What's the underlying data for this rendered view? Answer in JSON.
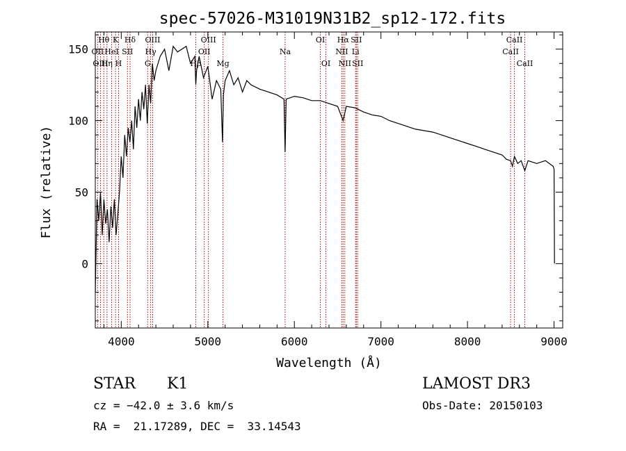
{
  "chart_data": {
    "type": "line",
    "title": "spec-57026-M31019N31B2_sp12-172.fits",
    "xlabel": "Wavelength (Å)",
    "ylabel": "Flux (relative)",
    "xlim": [
      3700,
      9100
    ],
    "ylim": [
      -45,
      162
    ],
    "xticks": [
      4000,
      5000,
      6000,
      7000,
      8000,
      9000
    ],
    "yticks": [
      0,
      50,
      100,
      150
    ],
    "grid": false,
    "series": [
      {
        "name": "spectrum",
        "x": [
          3700,
          3720,
          3740,
          3760,
          3780,
          3800,
          3820,
          3840,
          3860,
          3880,
          3900,
          3920,
          3940,
          3960,
          3980,
          4000,
          4020,
          4040,
          4060,
          4080,
          4100,
          4120,
          4140,
          4160,
          4180,
          4200,
          4220,
          4240,
          4260,
          4280,
          4300,
          4320,
          4340,
          4360,
          4380,
          4400,
          4450,
          4500,
          4550,
          4600,
          4650,
          4700,
          4750,
          4800,
          4850,
          4861,
          4870,
          4900,
          4950,
          5000,
          5050,
          5100,
          5150,
          5170,
          5180,
          5200,
          5250,
          5300,
          5350,
          5400,
          5450,
          5500,
          5600,
          5700,
          5800,
          5880,
          5893,
          5905,
          6000,
          6100,
          6200,
          6300,
          6400,
          6500,
          6563,
          6600,
          6700,
          6800,
          6900,
          7000,
          7100,
          7200,
          7300,
          7400,
          7500,
          7600,
          7700,
          7800,
          7900,
          8000,
          8100,
          8200,
          8300,
          8400,
          8450,
          8498,
          8520,
          8542,
          8580,
          8620,
          8662,
          8700,
          8800,
          8900,
          8990,
          9000,
          9005
        ],
        "y": [
          -20,
          45,
          30,
          50,
          20,
          45,
          28,
          38,
          15,
          40,
          25,
          45,
          20,
          35,
          50,
          75,
          60,
          90,
          75,
          95,
          85,
          100,
          80,
          110,
          95,
          115,
          100,
          120,
          108,
          125,
          98,
          125,
          112,
          140,
          128,
          135,
          145,
          150,
          135,
          152,
          148,
          150,
          152,
          140,
          145,
          125,
          135,
          145,
          130,
          138,
          115,
          128,
          122,
          85,
          118,
          128,
          135,
          125,
          130,
          120,
          128,
          125,
          122,
          120,
          118,
          115,
          78,
          115,
          117,
          116,
          114,
          114,
          112,
          110,
          100,
          110,
          109,
          106,
          104,
          103,
          100,
          98,
          96,
          94,
          93,
          92,
          90,
          88,
          86,
          84,
          82,
          80,
          78,
          76,
          73,
          72,
          68,
          75,
          70,
          72,
          65,
          72,
          70,
          72,
          68,
          66,
          0
        ]
      }
    ],
    "lines": [
      {
        "label": "Hθ",
        "x": 3798,
        "row": 1
      },
      {
        "label": "OII",
        "x": 3727,
        "row": 2
      },
      {
        "label": "OIII",
        "x": 3760,
        "row": 3
      },
      {
        "label": "K",
        "x": 3934,
        "row": 1
      },
      {
        "label": "HeI",
        "x": 3889,
        "row": 2
      },
      {
        "label": "Hη",
        "x": 3835,
        "row": 3
      },
      {
        "label": "H",
        "x": 3969,
        "row": 3
      },
      {
        "label": "Hδ",
        "x": 4102,
        "row": 1
      },
      {
        "label": "SII",
        "x": 4072,
        "row": 2
      },
      {
        "label": "OIII",
        "x": 4363,
        "row": 1
      },
      {
        "label": "Hγ",
        "x": 4340,
        "row": 2
      },
      {
        "label": "G",
        "x": 4305,
        "row": 3
      },
      {
        "label": "Hβ",
        "x": 4861,
        "row": 3
      },
      {
        "label": "OIII",
        "x": 5007,
        "row": 1
      },
      {
        "label": "OII",
        "x": 4959,
        "row": 2
      },
      {
        "label": "Mg",
        "x": 5175,
        "row": 3
      },
      {
        "label": "Na",
        "x": 5893,
        "row": 2
      },
      {
        "label": "OI",
        "x": 6300,
        "row": 1
      },
      {
        "label": "OI",
        "x": 6364,
        "row": 3
      },
      {
        "label": "Hα",
        "x": 6563,
        "row": 1
      },
      {
        "label": "SII",
        "x": 6716,
        "row": 1
      },
      {
        "label": "NII",
        "x": 6548,
        "row": 2
      },
      {
        "label": "Li",
        "x": 6707,
        "row": 2
      },
      {
        "label": "NII",
        "x": 6583,
        "row": 3
      },
      {
        "label": "SII",
        "x": 6731,
        "row": 3
      },
      {
        "label": "CaII",
        "x": 8542,
        "row": 1
      },
      {
        "label": "CaII",
        "x": 8498,
        "row": 2
      },
      {
        "label": "CaII",
        "x": 8662,
        "row": 3
      }
    ]
  },
  "info": {
    "class_label": "STAR",
    "subclass_label": "K1",
    "survey": "LAMOST DR3",
    "redshift_text": "cz = −42.0 ± 3.6 km/s",
    "obs_date_text": "Obs-Date: 20150103",
    "coords_text": "RA =  21.17289, DEC =  33.14543"
  },
  "colors": {
    "spectrum": "#000000",
    "line_marker": "#b00000",
    "axis": "#000000"
  }
}
